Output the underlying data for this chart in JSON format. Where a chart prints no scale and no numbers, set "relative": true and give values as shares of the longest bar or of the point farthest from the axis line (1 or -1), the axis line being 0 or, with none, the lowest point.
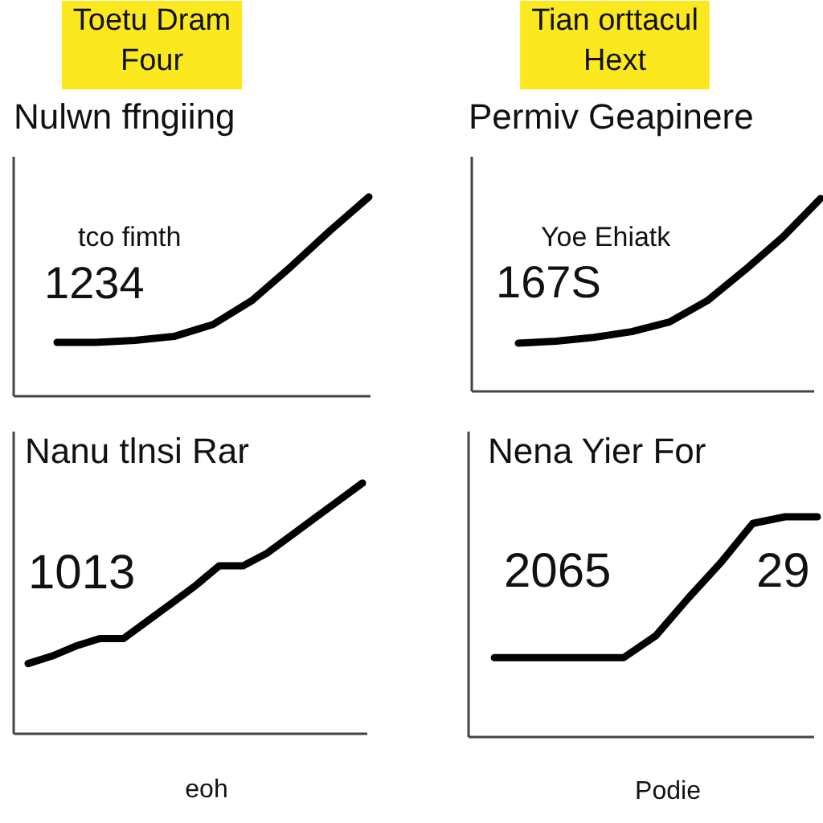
{
  "chart_data": [
    {
      "type": "line",
      "title": "Toetu Dram\nFour",
      "subtitle": "Nulwn ffngiing",
      "annotations": [
        "tco fimth",
        "1234"
      ],
      "relative": true,
      "color": "#000000",
      "categories": [
        null,
        null,
        null,
        null,
        null,
        null,
        null,
        null,
        null
      ],
      "values": [
        0.27,
        0.27,
        0.28,
        0.3,
        0.36,
        0.48,
        0.65,
        0.83,
        1.0
      ]
    },
    {
      "type": "line",
      "title": "Tian orttacul\nHext",
      "subtitle": "Permiv Geapinere",
      "annotations": [
        "Yoe Ehiatk",
        "167S"
      ],
      "relative": true,
      "color": "#000000",
      "categories": [
        null,
        null,
        null,
        null,
        null,
        null,
        null,
        null,
        null
      ],
      "values": [
        0.25,
        0.26,
        0.28,
        0.31,
        0.36,
        0.47,
        0.63,
        0.8,
        1.0
      ]
    },
    {
      "type": "line",
      "title": "Nanu tlnsi Rar",
      "xlabel": "eoh",
      "annotations": [
        "1013"
      ],
      "relative": true,
      "color": "#000000",
      "categories": [
        null,
        null,
        null,
        null,
        null,
        null,
        null,
        null,
        null,
        null,
        null,
        null,
        null,
        null,
        null
      ],
      "values": [
        0.28,
        0.31,
        0.35,
        0.38,
        0.38,
        0.45,
        0.52,
        0.59,
        0.67,
        0.67,
        0.72,
        0.79,
        0.86,
        0.93,
        1.0
      ]
    },
    {
      "type": "line",
      "title": "Nena Yier For",
      "xlabel": "Podie",
      "annotations": [
        "2065",
        "29"
      ],
      "relative": true,
      "color": "#000000",
      "categories": [
        null,
        null,
        null,
        null,
        null,
        null,
        null,
        null,
        null,
        null,
        null
      ],
      "values": [
        0.36,
        0.36,
        0.36,
        0.36,
        0.36,
        0.46,
        0.63,
        0.79,
        0.97,
        1.0,
        1.0
      ]
    }
  ]
}
